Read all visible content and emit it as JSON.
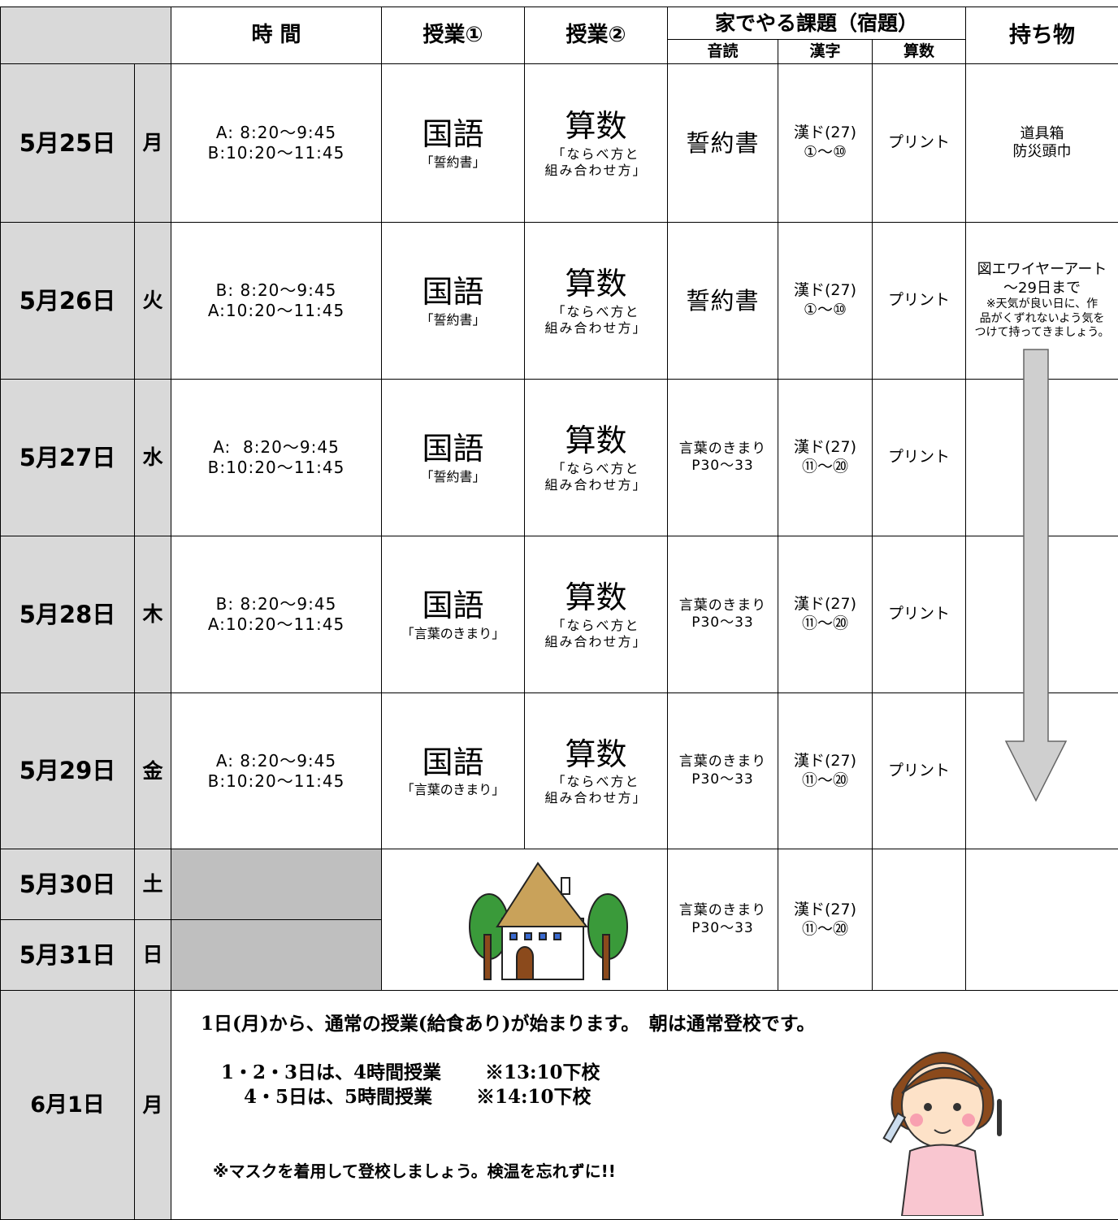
{
  "header": {
    "time": "時 間",
    "class1": "授業①",
    "class2": "授業②",
    "homework": "家でやる課題（宿題）",
    "reading": "音読",
    "kanji": "漢字",
    "math": "算数",
    "items": "持ち物"
  },
  "rows": [
    {
      "date": "5月25日",
      "day": "月",
      "time": [
        "A: 8:20～9:45",
        "B:10:20～11:45"
      ],
      "class1": {
        "subject": "国語",
        "topic": [
          "「誓約書」"
        ]
      },
      "class2": {
        "subject": "算数",
        "topic": [
          "「ならべ方と",
          "組み合わせ方」"
        ]
      },
      "reading": [
        "誓約書"
      ],
      "kanji": [
        "漢ド(27)",
        "①～⑩"
      ],
      "math": "プリント",
      "items": [
        "道具箱",
        "防災頭巾"
      ]
    },
    {
      "date": "5月26日",
      "day": "火",
      "time": [
        "B: 8:20～9:45",
        "A:10:20～11:45"
      ],
      "class1": {
        "subject": "国語",
        "topic": [
          "「誓約書」"
        ]
      },
      "class2": {
        "subject": "算数",
        "topic": [
          "「ならべ方と",
          "組み合わせ方」"
        ]
      },
      "reading": [
        "誓約書"
      ],
      "kanji": [
        "漢ド(27)",
        "①～⑩"
      ],
      "math": "プリント",
      "items": [
        "図エワイヤーアート",
        "～29日まで",
        "※天気が良い日に、作",
        "品がくずれないよう気を",
        "つけて持ってきましょう。"
      ]
    },
    {
      "date": "5月27日",
      "day": "水",
      "time": [
        "A:  8:20～9:45",
        "B:10:20～11:45"
      ],
      "class1": {
        "subject": "国語",
        "topic": [
          "「誓約書」"
        ]
      },
      "class2": {
        "subject": "算数",
        "topic": [
          "「ならべ方と",
          "組み合わせ方」"
        ]
      },
      "reading": [
        "言葉のきまり",
        "P30～33"
      ],
      "kanji": [
        "漢ド(27)",
        "⑪～⑳"
      ],
      "math": "プリント"
    },
    {
      "date": "5月28日",
      "day": "木",
      "time": [
        "B: 8:20～9:45",
        "A:10:20～11:45"
      ],
      "class1": {
        "subject": "国語",
        "topic": [
          "「言葉のきまり」"
        ]
      },
      "class2": {
        "subject": "算数",
        "topic": [
          "「ならべ方と",
          "組み合わせ方」"
        ]
      },
      "reading": [
        "言葉のきまり",
        "P30～33"
      ],
      "kanji": [
        "漢ド(27)",
        "⑪～⑳"
      ],
      "math": "プリント"
    },
    {
      "date": "5月29日",
      "day": "金",
      "time": [
        "A: 8:20～9:45",
        "B:10:20～11:45"
      ],
      "class1": {
        "subject": "国語",
        "topic": [
          "「言葉のきまり」"
        ]
      },
      "class2": {
        "subject": "算数",
        "topic": [
          "「ならべ方と",
          "組み合わせ方」"
        ]
      },
      "reading": [
        "言葉のきまり",
        "P30～33"
      ],
      "kanji": [
        "漢ド(27)",
        "⑪～⑳"
      ],
      "math": "プリント"
    }
  ],
  "weekend": {
    "days": [
      {
        "date": "5月30日",
        "day": "土"
      },
      {
        "date": "5月31日",
        "day": "日"
      }
    ],
    "reading": [
      "言葉のきまり",
      "P30～33"
    ],
    "kanji": [
      "漢ド(27)",
      "⑪～⑳"
    ]
  },
  "notice": {
    "date": "6月1日",
    "day": "月",
    "lines": [
      "1日(月)から、通常の授業(給食あり)が始まります。　朝は通常登校です。",
      "1・2・3日は、4時間授業　　 ※13:10下校",
      "4・5日は、5時間授業　　 ※14:10下校",
      "※マスクを着用して登校しましょう。検温を忘れずに!!"
    ]
  }
}
